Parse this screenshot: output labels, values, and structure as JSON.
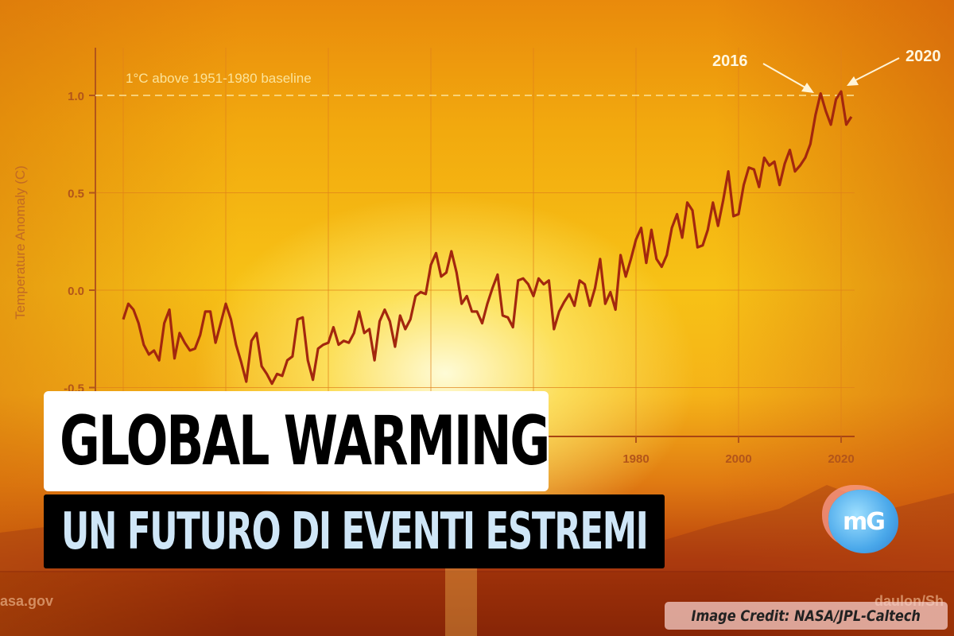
{
  "colors": {
    "line": "#a3270e",
    "grid": "#e0801a",
    "axis": "#b2551a",
    "baseline": "#fbe39a",
    "title_bg": "#ffffff",
    "subtitle_bg": "#000000",
    "subtitle_text": "#cfe6f7"
  },
  "overlay": {
    "title": "GLOBAL WARMING",
    "subtitle": "UN FUTURO DI EVENTI ESTREMI",
    "logo_text": "mG",
    "credit": "Image Credit: NASA/JPL-Caltech",
    "watermark_left": "asa.gov",
    "watermark_right": "daulon/Sh"
  },
  "chart_data": {
    "type": "line",
    "title": "",
    "xlabel": "",
    "ylabel": "Temperature Anomaly (C)",
    "xlim": [
      1880,
      2022
    ],
    "ylim": [
      -0.5,
      1.1
    ],
    "yticks": [
      -0.5,
      0.0,
      0.5,
      1.0
    ],
    "ytick_labels": [
      "-0.5",
      "0.0",
      "0.5",
      "1.0"
    ],
    "xticks_visible": [
      1980,
      2000,
      2020
    ],
    "xtick_labels": [
      "1980",
      "2000",
      "2020"
    ],
    "grid": true,
    "reference_line": {
      "y": 1.0,
      "label": "1°C above 1951-1980 baseline",
      "style": "dashed"
    },
    "annotations": [
      {
        "label": "2016",
        "x": 2016,
        "y": 1.01
      },
      {
        "label": "2020",
        "x": 2020,
        "y": 1.02
      }
    ],
    "x": [
      1880,
      1881,
      1882,
      1883,
      1884,
      1885,
      1886,
      1887,
      1888,
      1889,
      1890,
      1891,
      1892,
      1893,
      1894,
      1895,
      1896,
      1897,
      1898,
      1899,
      1900,
      1901,
      1902,
      1903,
      1904,
      1905,
      1906,
      1907,
      1908,
      1909,
      1910,
      1911,
      1912,
      1913,
      1914,
      1915,
      1916,
      1917,
      1918,
      1919,
      1920,
      1921,
      1922,
      1923,
      1924,
      1925,
      1926,
      1927,
      1928,
      1929,
      1930,
      1931,
      1932,
      1933,
      1934,
      1935,
      1936,
      1937,
      1938,
      1939,
      1940,
      1941,
      1942,
      1943,
      1944,
      1945,
      1946,
      1947,
      1948,
      1949,
      1950,
      1951,
      1952,
      1953,
      1954,
      1955,
      1956,
      1957,
      1958,
      1959,
      1960,
      1961,
      1962,
      1963,
      1964,
      1965,
      1966,
      1967,
      1968,
      1969,
      1970,
      1971,
      1972,
      1973,
      1974,
      1975,
      1976,
      1977,
      1978,
      1979,
      1980,
      1981,
      1982,
      1983,
      1984,
      1985,
      1986,
      1987,
      1988,
      1989,
      1990,
      1991,
      1992,
      1993,
      1994,
      1995,
      1996,
      1997,
      1998,
      1999,
      2000,
      2001,
      2002,
      2003,
      2004,
      2005,
      2006,
      2007,
      2008,
      2009,
      2010,
      2011,
      2012,
      2013,
      2014,
      2015,
      2016,
      2017,
      2018,
      2019,
      2020,
      2021,
      2022
    ],
    "y": [
      -0.15,
      -0.07,
      -0.1,
      -0.17,
      -0.28,
      -0.33,
      -0.31,
      -0.36,
      -0.17,
      -0.1,
      -0.35,
      -0.22,
      -0.27,
      -0.31,
      -0.3,
      -0.23,
      -0.11,
      -0.11,
      -0.27,
      -0.17,
      -0.07,
      -0.15,
      -0.28,
      -0.37,
      -0.47,
      -0.26,
      -0.22,
      -0.39,
      -0.43,
      -0.48,
      -0.43,
      -0.44,
      -0.36,
      -0.34,
      -0.15,
      -0.14,
      -0.36,
      -0.46,
      -0.3,
      -0.28,
      -0.27,
      -0.19,
      -0.28,
      -0.26,
      -0.27,
      -0.22,
      -0.11,
      -0.22,
      -0.2,
      -0.36,
      -0.16,
      -0.1,
      -0.16,
      -0.29,
      -0.13,
      -0.2,
      -0.15,
      -0.03,
      -0.01,
      -0.02,
      0.13,
      0.19,
      0.07,
      0.09,
      0.2,
      0.09,
      -0.07,
      -0.03,
      -0.11,
      -0.11,
      -0.17,
      -0.07,
      0.01,
      0.08,
      -0.13,
      -0.14,
      -0.19,
      0.05,
      0.06,
      0.03,
      -0.03,
      0.06,
      0.03,
      0.05,
      -0.2,
      -0.11,
      -0.06,
      -0.02,
      -0.08,
      0.05,
      0.03,
      -0.08,
      0.01,
      0.16,
      -0.07,
      -0.01,
      -0.1,
      0.18,
      0.07,
      0.16,
      0.26,
      0.32,
      0.14,
      0.31,
      0.16,
      0.12,
      0.18,
      0.32,
      0.39,
      0.27,
      0.45,
      0.41,
      0.22,
      0.23,
      0.31,
      0.45,
      0.33,
      0.46,
      0.61,
      0.38,
      0.39,
      0.54,
      0.63,
      0.62,
      0.53,
      0.68,
      0.64,
      0.66,
      0.54,
      0.65,
      0.72,
      0.61,
      0.64,
      0.68,
      0.75,
      0.9,
      1.01,
      0.92,
      0.85,
      0.98,
      1.02,
      0.85,
      0.89
    ]
  }
}
